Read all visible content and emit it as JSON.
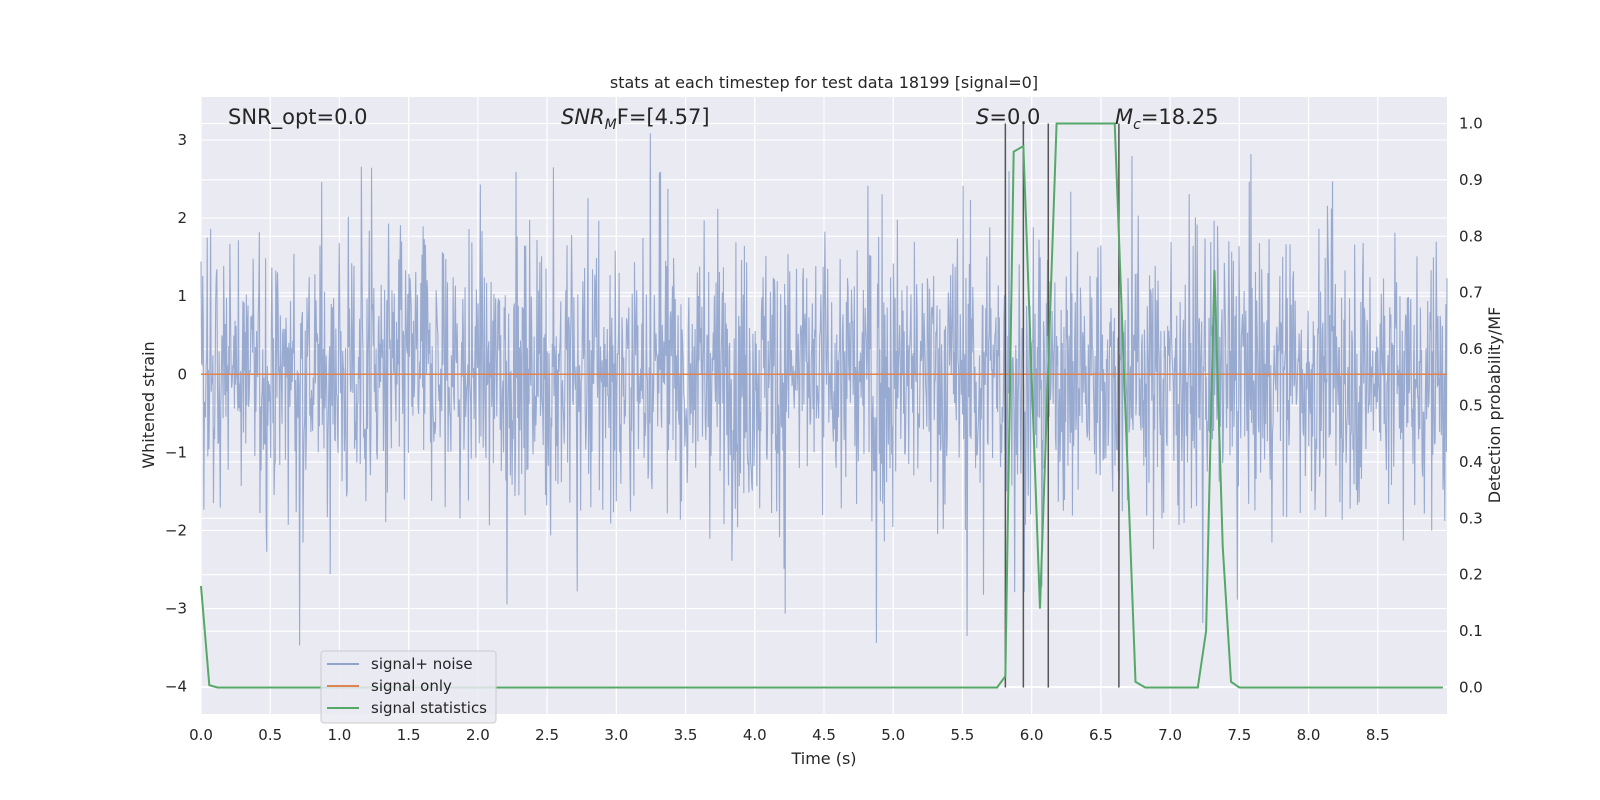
{
  "chart_data": {
    "type": "line",
    "title": "stats at each timestep for test data 18199 [signal=0]",
    "xlabel": "Time (s)",
    "ylabel_left": "Whitened strain",
    "ylabel_right": "Detection probability/MF",
    "xlim": [
      0.0,
      9.0
    ],
    "ylim_left": [
      -4.35,
      3.55
    ],
    "ylim_right": [
      -0.047,
      1.047
    ],
    "grid": true,
    "legend_position": "lower-left",
    "x_ticks": [
      "0.0",
      "0.5",
      "1.0",
      "1.5",
      "2.0",
      "2.5",
      "3.0",
      "3.5",
      "4.0",
      "4.5",
      "5.0",
      "5.5",
      "6.0",
      "6.5",
      "7.0",
      "7.5",
      "8.0",
      "8.5"
    ],
    "y_ticks_left": [
      "−4",
      "−3",
      "−2",
      "−1",
      "0",
      "1",
      "2",
      "3"
    ],
    "y_ticks_right": [
      "0.0",
      "0.1",
      "0.2",
      "0.3",
      "0.4",
      "0.5",
      "0.6",
      "0.7",
      "0.8",
      "0.9",
      "1.0"
    ],
    "annotations": {
      "snr_opt": "SNR_opt=0.0",
      "snr_mf_base": "SNR",
      "snr_mf_sub": "M",
      "snr_mf_rest": "F=[4.57]",
      "s_label": "S",
      "s_value": "=0.0",
      "mc_base": "M",
      "mc_sub": "c",
      "mc_value": "=18.25"
    },
    "legend": [
      {
        "label": "signal+ noise",
        "color": "#8fa3cc"
      },
      {
        "label": "signal only",
        "color": "#dd8452"
      },
      {
        "label": "signal statistics",
        "color": "#55a868"
      }
    ],
    "series": [
      {
        "name": "signal+ noise",
        "axis": "left",
        "kind": "noise",
        "color": "#8fa3cc",
        "envelope_typical": 1.6,
        "envelope_max": [
          3.1,
          -3.5
        ]
      },
      {
        "name": "signal only",
        "axis": "left",
        "color": "#dd8452",
        "x": [
          0.0,
          9.0
        ],
        "y": [
          0.0,
          0.0
        ]
      },
      {
        "name": "signal statistics",
        "axis": "right",
        "color": "#55a868",
        "x": [
          0.0,
          0.06,
          0.12,
          5.75,
          5.81,
          5.87,
          5.94,
          6.06,
          6.18,
          6.3,
          6.6,
          6.75,
          6.82,
          6.87,
          7.2,
          7.26,
          7.32,
          7.38,
          7.44,
          7.5,
          8.97
        ],
        "y": [
          0.18,
          0.004,
          0.0,
          0.0,
          0.02,
          0.95,
          0.96,
          0.14,
          1.0,
          1.0,
          1.0,
          0.01,
          0.0,
          0.0,
          0.0,
          0.1,
          0.74,
          0.25,
          0.01,
          0.0,
          0.0
        ]
      }
    ],
    "vertical_markers": {
      "color": "#555555",
      "x": [
        5.81,
        5.94,
        6.12,
        6.63
      ],
      "y_range_right": [
        0.0,
        1.0
      ]
    }
  }
}
